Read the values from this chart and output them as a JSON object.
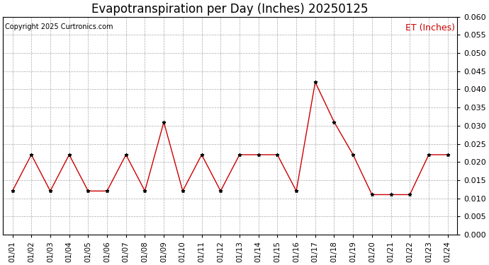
{
  "title": "Evapotranspiration per Day (Inches) 20250125",
  "copyright_text": "Copyright 2025 Curtronics.com",
  "legend_label": "ET (Inches)",
  "legend_color": "#cc0000",
  "line_color": "#cc0000",
  "marker_color": "#000000",
  "dates": [
    "01/01",
    "01/02",
    "01/03",
    "01/04",
    "01/05",
    "01/06",
    "01/07",
    "01/08",
    "01/09",
    "01/10",
    "01/11",
    "01/12",
    "01/13",
    "01/14",
    "01/15",
    "01/16",
    "01/17",
    "01/18",
    "01/19",
    "01/20",
    "01/21",
    "01/22",
    "01/23",
    "01/24"
  ],
  "values": [
    0.012,
    0.022,
    0.012,
    0.022,
    0.012,
    0.012,
    0.022,
    0.012,
    0.031,
    0.012,
    0.022,
    0.012,
    0.022,
    0.022,
    0.022,
    0.012,
    0.042,
    0.031,
    0.022,
    0.011,
    0.011,
    0.011,
    0.022,
    0.022
  ],
  "ylim": [
    0.0,
    0.06
  ],
  "yticks": [
    0.0,
    0.005,
    0.01,
    0.015,
    0.02,
    0.025,
    0.03,
    0.035,
    0.04,
    0.045,
    0.05,
    0.055,
    0.06
  ],
  "background_color": "#ffffff",
  "grid_color": "#aaaaaa",
  "title_fontsize": 12,
  "copyright_fontsize": 7,
  "legend_fontsize": 9,
  "tick_fontsize": 7.5,
  "ytick_fontsize": 8
}
